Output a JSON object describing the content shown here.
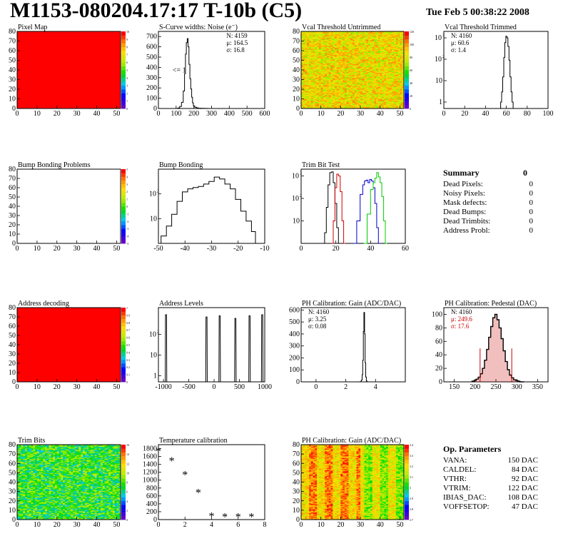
{
  "header": {
    "title": "M1153-080204.17:17 T-10b (C5)",
    "date": "Tue Feb  5 00:38:22 2008"
  },
  "colors": {
    "hist_black": "#000000",
    "hist_red": "#cc0000",
    "hist_blue": "#0000cc",
    "hist_green": "#00cc00",
    "map_red": "#ff0000",
    "pedestal_fill": "#cc0000"
  },
  "chart_data": [
    {
      "id": "pixel-map",
      "type": "heatmap",
      "title": "Pixel Map",
      "xlim": [
        0,
        52
      ],
      "ylim": [
        0,
        80
      ],
      "x_ticks": [
        0,
        10,
        20,
        30,
        40,
        50
      ],
      "y_ticks": [
        0,
        10,
        20,
        30,
        40,
        50,
        60,
        70,
        80
      ],
      "fill": "uniform-red",
      "color_scale_ticks": [
        "0",
        "1",
        "2",
        "3",
        "4",
        "5",
        "6",
        "7",
        "8",
        "9",
        "10"
      ]
    },
    {
      "id": "s-curve",
      "type": "line",
      "title": "S-Curve widths: Noise (e⁻)",
      "xlim": [
        0,
        600
      ],
      "ylim": [
        0,
        750
      ],
      "x_ticks": [
        0,
        100,
        200,
        300,
        400,
        500,
        600
      ],
      "y_ticks": [
        0,
        100,
        200,
        300,
        400,
        500,
        600,
        700
      ],
      "stats": {
        "N": "4159",
        "mu": "164.5",
        "sigma": "16.8"
      },
      "annotation": "<= 1",
      "series": [
        {
          "x": [
            115,
            125,
            135,
            145,
            150,
            155,
            160,
            165,
            170,
            175,
            180,
            185,
            190,
            195,
            200,
            210,
            220,
            230,
            250,
            270
          ],
          "y": [
            5,
            20,
            60,
            170,
            340,
            530,
            640,
            680,
            600,
            430,
            290,
            190,
            110,
            55,
            25,
            12,
            6,
            3,
            2,
            1
          ]
        }
      ]
    },
    {
      "id": "vcal-untrimmed",
      "type": "heatmap",
      "title": "Vcal Threshold Untrimmed",
      "xlim": [
        0,
        52
      ],
      "ylim": [
        0,
        80
      ],
      "x_ticks": [
        0,
        10,
        20,
        30,
        40,
        50
      ],
      "y_ticks": [
        0,
        10,
        20,
        30,
        40,
        50,
        60,
        70,
        80
      ],
      "fill": "noisy-orange",
      "color_scale_ticks": [
        "0",
        "20",
        "40",
        "60",
        "80",
        "100",
        "120"
      ]
    },
    {
      "id": "vcal-trimmed",
      "type": "line",
      "title": "Vcal Threshold Trimmed",
      "yscale": "log",
      "xlim": [
        0,
        100
      ],
      "ylim": [
        0.5,
        2000
      ],
      "x_ticks": [
        0,
        20,
        40,
        60,
        80,
        100
      ],
      "y_ticks": [
        1,
        10,
        100,
        1000
      ],
      "stats": {
        "N": "4160",
        "mu": "60.6",
        "sigma": "1.4"
      },
      "series": [
        {
          "x": [
            55,
            56,
            57,
            58,
            59,
            60,
            61,
            62,
            63,
            64,
            65,
            66
          ],
          "y": [
            1,
            3,
            15,
            120,
            600,
            1200,
            1000,
            400,
            90,
            15,
            3,
            1
          ]
        }
      ]
    },
    {
      "id": "bump-problems",
      "type": "heatmap",
      "title": "Bump Bonding Problems",
      "xlim": [
        0,
        52
      ],
      "ylim": [
        0,
        80
      ],
      "x_ticks": [
        0,
        10,
        20,
        30,
        40,
        50
      ],
      "y_ticks": [
        0,
        10,
        20,
        30,
        40,
        50,
        60,
        70,
        80
      ],
      "fill": "empty",
      "color_scale_ticks": [
        "-5",
        "-4",
        "-3",
        "-2",
        "-1",
        "0",
        "1",
        "2",
        "3",
        "4",
        "5"
      ]
    },
    {
      "id": "bump-bonding",
      "type": "line",
      "title": "Bump Bonding",
      "yscale": "log",
      "xlim": [
        -50,
        -10
      ],
      "ylim": [
        1,
        1000
      ],
      "x_ticks": [
        -50,
        -40,
        -30,
        -20,
        -10
      ],
      "y_ticks": [
        10,
        100
      ],
      "series": [
        {
          "x": [
            -48,
            -46,
            -44,
            -42,
            -40,
            -38,
            -36,
            -34,
            -32,
            -30,
            -28,
            -26,
            -24,
            -22,
            -20,
            -18,
            -16,
            -14,
            -13
          ],
          "y": [
            2,
            5,
            15,
            50,
            120,
            160,
            180,
            200,
            250,
            320,
            480,
            400,
            250,
            160,
            60,
            20,
            8,
            3,
            1
          ]
        }
      ]
    },
    {
      "id": "trim-bit-test",
      "type": "line",
      "title": "Trim Bit Test",
      "yscale": "log",
      "xlim": [
        0,
        60
      ],
      "ylim": [
        1,
        2000
      ],
      "x_ticks": [
        0,
        20,
        40,
        60
      ],
      "y_ticks": [
        10,
        100,
        1000
      ],
      "series": [
        {
          "color": "#000000",
          "x": [
            13,
            14,
            15,
            16,
            17,
            18,
            19,
            20,
            21,
            22
          ],
          "y": [
            1,
            3,
            40,
            400,
            1400,
            1500,
            500,
            60,
            5,
            1
          ]
        },
        {
          "color": "#cc0000",
          "x": [
            18,
            19,
            20,
            21,
            22,
            23,
            24,
            25
          ],
          "y": [
            1,
            10,
            300,
            1200,
            1000,
            200,
            10,
            1
          ]
        },
        {
          "color": "#0000cc",
          "x": [
            31,
            33,
            35,
            36,
            37,
            38,
            39,
            40,
            41,
            42,
            43,
            44,
            45
          ],
          "y": [
            1,
            10,
            150,
            400,
            600,
            650,
            500,
            700,
            600,
            300,
            60,
            5,
            1
          ]
        },
        {
          "color": "#00cc00",
          "x": [
            37,
            39,
            41,
            42,
            43,
            44,
            45,
            46,
            47,
            48,
            49
          ],
          "y": [
            1,
            20,
            250,
            500,
            800,
            1400,
            900,
            500,
            120,
            10,
            1
          ]
        }
      ]
    },
    {
      "id": "address-decoding",
      "type": "heatmap",
      "title": "Address decoding",
      "xlim": [
        0,
        52
      ],
      "ylim": [
        0,
        80
      ],
      "x_ticks": [
        0,
        10,
        20,
        30,
        40,
        50
      ],
      "y_ticks": [
        0,
        10,
        20,
        30,
        40,
        50,
        60,
        70,
        80
      ],
      "fill": "uniform-red",
      "color_scale_ticks": [
        "0",
        "0.1",
        "0.2",
        "0.3",
        "0.4",
        "0.5",
        "0.6",
        "0.7",
        "0.8",
        "0.9",
        "1"
      ]
    },
    {
      "id": "address-levels",
      "type": "line",
      "title": "Address Levels",
      "yscale": "log",
      "xlim": [
        -1100,
        1000
      ],
      "ylim": [
        0.5,
        2000
      ],
      "x_ticks": [
        -1000,
        -500,
        0,
        500,
        1000
      ],
      "y_ticks": [
        1,
        10,
        100
      ],
      "peaks": [
        -950,
        -150,
        110,
        420,
        700,
        950
      ],
      "peak_heights": [
        900,
        700,
        800,
        600,
        800,
        900
      ]
    },
    {
      "id": "ph-gain",
      "type": "line",
      "title": "PH Calibration: Gain (ADC/DAC)",
      "xlim": [
        -1,
        6
      ],
      "ylim": [
        0,
        620
      ],
      "x_ticks": [
        0,
        2,
        4
      ],
      "y_ticks": [
        0,
        100,
        200,
        300,
        400,
        500,
        600
      ],
      "stats": {
        "N": "4160",
        "mu": "3.25",
        "sigma": "0.08"
      },
      "series": [
        {
          "x": [
            3.0,
            3.08,
            3.12,
            3.16,
            3.2,
            3.24,
            3.28,
            3.32,
            3.36,
            3.4,
            3.44
          ],
          "y": [
            2,
            15,
            60,
            180,
            420,
            580,
            400,
            160,
            40,
            8,
            1
          ]
        }
      ]
    },
    {
      "id": "ph-pedestal",
      "type": "line",
      "title": "PH Calibration: Pedestal (DAC)",
      "xlim": [
        125,
        375
      ],
      "ylim": [
        0,
        110
      ],
      "x_ticks": [
        150,
        200,
        250,
        300,
        350
      ],
      "y_ticks": [
        0,
        20,
        40,
        60,
        80,
        100
      ],
      "stats": {
        "N": "4160",
        "mu": "249.6",
        "sigma": "17.6"
      },
      "fit_range": [
        212,
        288
      ],
      "series": [
        {
          "x": [
            195,
            200,
            205,
            210,
            215,
            220,
            225,
            230,
            235,
            240,
            245,
            250,
            255,
            260,
            265,
            270,
            275,
            280,
            285,
            290,
            295,
            300,
            305,
            310,
            315
          ],
          "y": [
            1,
            2,
            4,
            7,
            12,
            20,
            32,
            48,
            66,
            82,
            95,
            100,
            92,
            80,
            64,
            46,
            30,
            18,
            10,
            6,
            3,
            2,
            1,
            0,
            0
          ]
        }
      ]
    },
    {
      "id": "trim-bits",
      "type": "heatmap",
      "title": "Trim Bits",
      "xlim": [
        0,
        52
      ],
      "ylim": [
        0,
        80
      ],
      "x_ticks": [
        0,
        10,
        20,
        30,
        40,
        50
      ],
      "y_ticks": [
        0,
        10,
        20,
        30,
        40,
        50,
        60,
        70,
        80
      ],
      "fill": "noisy-green",
      "color_scale_ticks": [
        "0",
        "2",
        "4",
        "6",
        "8",
        "10",
        "12",
        "14",
        "16"
      ]
    },
    {
      "id": "temperature-calibration",
      "type": "scatter",
      "title": "Temperature calibration",
      "xlim": [
        0,
        8
      ],
      "ylim": [
        0,
        1900
      ],
      "x_ticks": [
        0,
        2,
        4,
        6,
        8
      ],
      "y_ticks": [
        0,
        200,
        400,
        600,
        800,
        1000,
        1200,
        1400,
        1600,
        1800
      ],
      "points": {
        "x": [
          0,
          1,
          2,
          3,
          4,
          5,
          6,
          7
        ],
        "y": [
          1750,
          1500,
          1150,
          700,
          100,
          80,
          80,
          80
        ]
      }
    },
    {
      "id": "ph-gain-map",
      "type": "heatmap",
      "title": "PH Calibration: Gain (ADC/DAC)",
      "xlim": [
        0,
        52
      ],
      "ylim": [
        0,
        80
      ],
      "x_ticks": [
        0,
        10,
        20,
        30,
        40,
        50
      ],
      "y_ticks": [
        0,
        10,
        20,
        30,
        40,
        50,
        60,
        70,
        80
      ],
      "fill": "noisy-gain",
      "color_scale_ticks": [
        "2.7",
        "2.8",
        "2.9",
        "3",
        "3.1",
        "3.2",
        "3.3",
        "3.4"
      ]
    }
  ],
  "summary": {
    "title": "Summary",
    "total": "0",
    "rows": [
      {
        "label": "Dead Pixels:",
        "value": "0"
      },
      {
        "label": "Noisy Pixels:",
        "value": "0"
      },
      {
        "label": "Mask defects:",
        "value": "0"
      },
      {
        "label": "Dead Bumps:",
        "value": "0"
      },
      {
        "label": "Dead Trimbits:",
        "value": "0"
      },
      {
        "label": "Address Probl:",
        "value": "0"
      }
    ]
  },
  "op_parameters": {
    "title": "Op. Parameters",
    "rows": [
      {
        "label": "VANA:",
        "value": "150 DAC"
      },
      {
        "label": "CALDEL:",
        "value": "84 DAC"
      },
      {
        "label": "VTHR:",
        "value": "92 DAC"
      },
      {
        "label": "VTRIM:",
        "value": "122 DAC"
      },
      {
        "label": "IBIAS_DAC:",
        "value": "108 DAC"
      },
      {
        "label": "VOFFSETOP:",
        "value": "47 DAC"
      }
    ]
  }
}
